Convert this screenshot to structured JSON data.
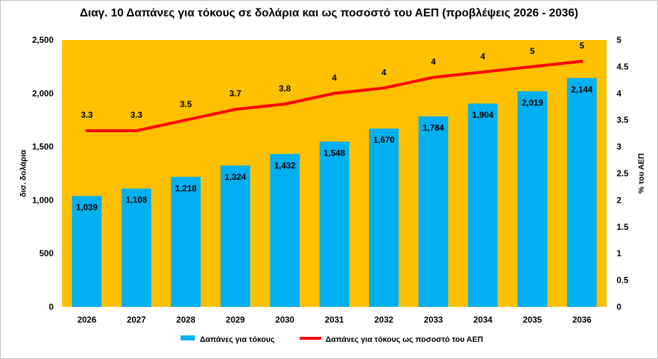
{
  "chart_data": {
    "type": "bar",
    "title": "Διαγ. 10 Δαπάνες για τόκους σε δολάρια και ως ποσοστό του ΑΕΠ (προβλέψεις 2026 - 2036)",
    "categories": [
      "2026",
      "2027",
      "2028",
      "2029",
      "2030",
      "2031",
      "2032",
      "2033",
      "2034",
      "2035",
      "2036"
    ],
    "series": [
      {
        "name": "Δαπάνες για τόκους",
        "type": "bar",
        "axis": "left",
        "color": "#00b0f0",
        "values": [
          1039,
          1108,
          1218,
          1324,
          1432,
          1548,
          1670,
          1784,
          1904,
          2019,
          2144
        ],
        "labels": [
          "1,039",
          "1,108",
          "1,218",
          "1,324",
          "1,432",
          "1,548",
          "1,670",
          "1,784",
          "1,904",
          "2,019",
          "2,144"
        ]
      },
      {
        "name": "Δαπάνες για τόκους ως ποσοστό του ΑΕΠ",
        "type": "line",
        "axis": "right",
        "color": "#ff0000",
        "values": [
          3.3,
          3.3,
          3.5,
          3.7,
          3.8,
          4.0,
          4.1,
          4.3,
          4.4,
          4.5,
          4.6
        ],
        "labels": [
          "3.3",
          "3.3",
          "3.5",
          "3.7",
          "3.8",
          "4",
          "4",
          "4",
          "4",
          "5",
          "5"
        ]
      }
    ],
    "ylabel": "δισ. δολάρια",
    "y2label": "% του ΑΕΠ",
    "ylim": [
      0,
      2500
    ],
    "y2lim": [
      0,
      5
    ],
    "yticks": [
      "0",
      "500",
      "1,000",
      "1,500",
      "2,000",
      "2,500"
    ],
    "y2ticks": [
      "0",
      "0.5",
      "1",
      "1.5",
      "2",
      "2.5",
      "3",
      "3.5",
      "4",
      "4.5",
      "5"
    ],
    "plot_background": "#ffc000",
    "grid": false,
    "legend_position": "bottom"
  }
}
